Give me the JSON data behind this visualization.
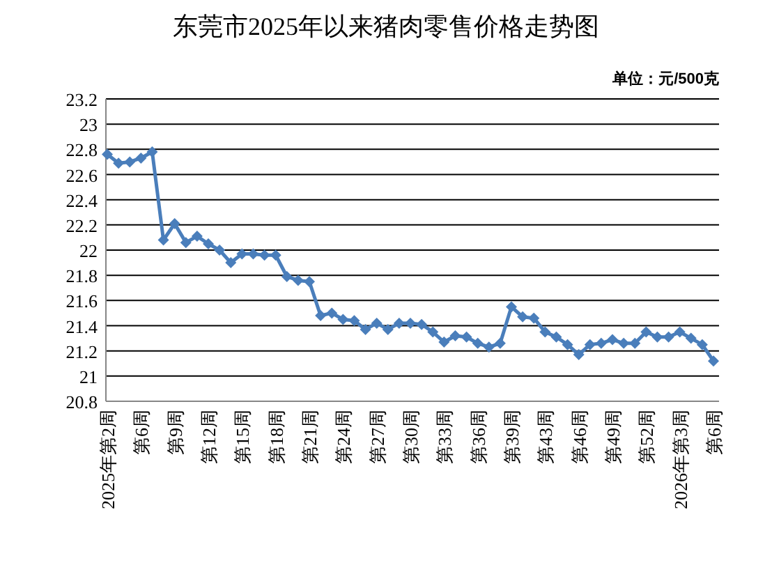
{
  "chart_data": {
    "type": "line",
    "title": "东莞市2025年以来猪肉零售价格走势图",
    "annotations": [
      "单位：元/500克"
    ],
    "categories": [
      "2025年第2周",
      null,
      null,
      "第6周",
      null,
      null,
      "第9周",
      null,
      null,
      "第12周",
      null,
      null,
      "第15周",
      null,
      null,
      "第18周",
      null,
      null,
      "第21周",
      null,
      null,
      "第24周",
      null,
      null,
      "第27周",
      null,
      null,
      "第30周",
      null,
      null,
      "第33周",
      null,
      null,
      "第36周",
      null,
      null,
      "第39周",
      null,
      null,
      "第43周",
      null,
      null,
      "第46周",
      null,
      null,
      "第49周",
      null,
      null,
      "第52周",
      null,
      null,
      "2026年第3周",
      null,
      null,
      "第6周"
    ],
    "series": [
      {
        "color": "#4a7ebb",
        "values": [
          22.76,
          22.69,
          22.7,
          22.73,
          22.78,
          22.08,
          22.21,
          22.06,
          22.11,
          22.05,
          22.0,
          21.9,
          21.97,
          21.97,
          21.96,
          21.96,
          21.79,
          21.76,
          21.75,
          21.48,
          21.5,
          21.45,
          21.44,
          21.37,
          21.42,
          21.37,
          21.42,
          21.42,
          21.41,
          21.35,
          21.27,
          21.32,
          21.31,
          21.26,
          21.23,
          21.26,
          21.55,
          21.47,
          21.46,
          21.35,
          21.31,
          21.25,
          21.17,
          21.25,
          21.26,
          21.29,
          21.26,
          21.26,
          21.35,
          21.31,
          21.31,
          21.35,
          21.3,
          21.25,
          21.12
        ]
      }
    ],
    "ylim": [
      20.8,
      23.2
    ],
    "yticks": [
      20.8,
      21,
      21.2,
      21.4,
      21.6,
      21.8,
      22,
      22.2,
      22.4,
      22.6,
      22.8,
      23,
      23.2
    ],
    "grid": "y",
    "marker": "diamond",
    "line_style": "solid"
  }
}
